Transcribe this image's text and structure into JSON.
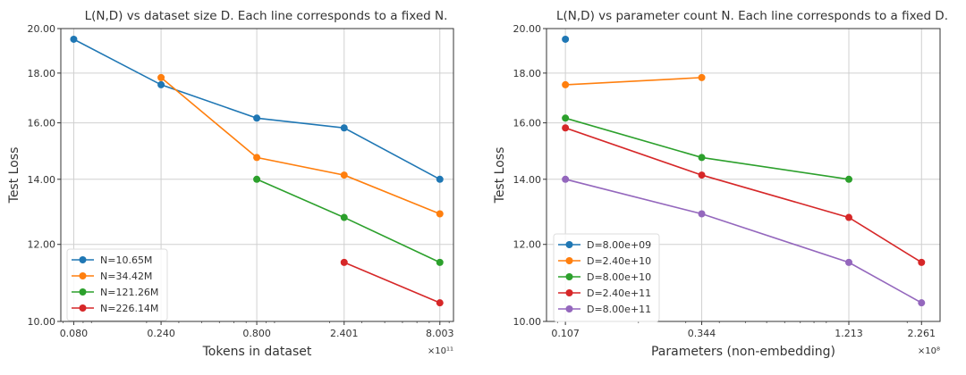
{
  "chart_data": [
    {
      "type": "line",
      "title": "L(N,D) vs dataset size D. Each line corresponds to a fixed N.",
      "xlabel": "Tokens in dataset",
      "ylabel": "Test Loss",
      "x_multiplier": "×10¹¹",
      "xscale": "log",
      "yscale": "log",
      "xlim": [
        0.068,
        9.5
      ],
      "ylim": [
        10,
        20
      ],
      "grid": true,
      "legend_position": "lower-left",
      "x_ticks": [
        "0.080",
        "0.240",
        "0.800",
        "2.401",
        "8.003"
      ],
      "x_tick_values": [
        0.08,
        0.24,
        0.8,
        2.401,
        8.003
      ],
      "y_ticks": [
        "10.00",
        "12.00",
        "14.00",
        "16.00",
        "18.00",
        "20.00"
      ],
      "y_tick_values": [
        10,
        12,
        14,
        16,
        18,
        20
      ],
      "series": [
        {
          "name": "N=10.65M",
          "color": "#1f77b4",
          "x": [
            0.08,
            0.24,
            0.8,
            2.401,
            8.003
          ],
          "y": [
            19.5,
            17.51,
            16.18,
            15.81,
            14.0
          ]
        },
        {
          "name": "N=34.42M",
          "color": "#ff7f0e",
          "x": [
            0.24,
            0.8,
            2.401,
            8.003
          ],
          "y": [
            17.81,
            14.74,
            14.14,
            12.9
          ]
        },
        {
          "name": "N=121.26M",
          "color": "#2ca02c",
          "x": [
            0.8,
            2.401,
            8.003
          ],
          "y": [
            14.0,
            12.79,
            11.5
          ]
        },
        {
          "name": "N=226.14M",
          "color": "#d62728",
          "x": [
            2.401,
            8.003
          ],
          "y": [
            11.5,
            10.45
          ]
        }
      ]
    },
    {
      "type": "line",
      "title": "L(N,D) vs parameter count N. Each line corresponds to a fixed D.",
      "xlabel": "Parameters (non-embedding)",
      "ylabel": "Test Loss",
      "x_multiplier": "×10⁸",
      "xscale": "log",
      "yscale": "log",
      "xlim": [
        0.091,
        2.65
      ],
      "ylim": [
        10,
        20
      ],
      "grid": true,
      "legend_position": "lower-left",
      "x_ticks": [
        "0.107",
        "0.344",
        "1.213",
        "2.261"
      ],
      "x_tick_values": [
        0.107,
        0.344,
        1.213,
        2.261
      ],
      "y_ticks": [
        "10.00",
        "12.00",
        "14.00",
        "16.00",
        "18.00",
        "20.00"
      ],
      "y_tick_values": [
        10,
        12,
        14,
        16,
        18,
        20
      ],
      "series": [
        {
          "name": "D=8.00e+09",
          "color": "#1f77b4",
          "x": [
            0.107
          ],
          "y": [
            19.5
          ]
        },
        {
          "name": "D=2.40e+10",
          "color": "#ff7f0e",
          "x": [
            0.107,
            0.344
          ],
          "y": [
            17.51,
            17.81
          ]
        },
        {
          "name": "D=8.00e+10",
          "color": "#2ca02c",
          "x": [
            0.107,
            0.344,
            1.213
          ],
          "y": [
            16.18,
            14.74,
            14.0
          ]
        },
        {
          "name": "D=2.40e+11",
          "color": "#d62728",
          "x": [
            0.107,
            0.344,
            1.213,
            2.261
          ],
          "y": [
            15.81,
            14.14,
            12.79,
            11.5
          ]
        },
        {
          "name": "D=8.00e+11",
          "color": "#9467bd",
          "x": [
            0.107,
            0.344,
            1.213,
            2.261
          ],
          "y": [
            14.0,
            12.9,
            11.5,
            10.45
          ]
        }
      ]
    }
  ]
}
